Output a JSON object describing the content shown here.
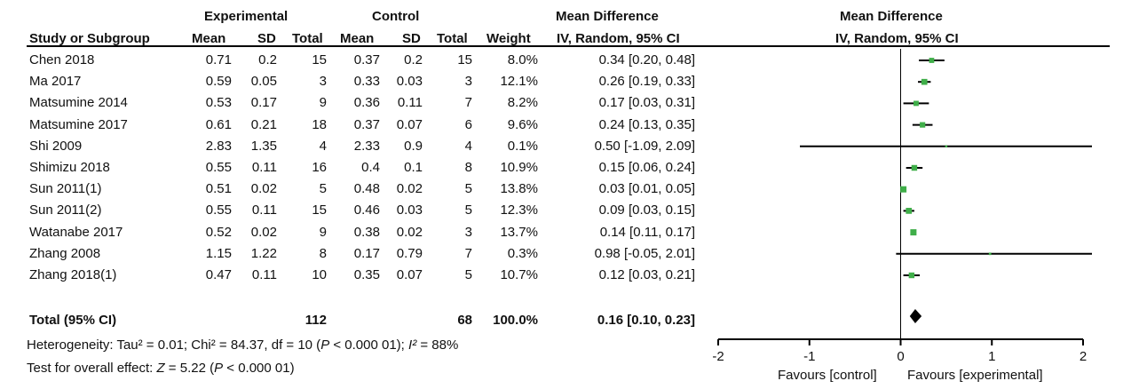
{
  "headers": {
    "experimental": "Experimental",
    "control": "Control",
    "mean_difference_left": "Mean Difference",
    "mean_difference_right": "Mean Difference",
    "study": "Study or Subgroup",
    "mean": "Mean",
    "sd": "SD",
    "total": "Total",
    "mean_c": "Mean",
    "sd_c": "SD",
    "total_c": "Total",
    "weight": "Weight",
    "ci_left": "IV, Random, 95% CI",
    "ci_right": "IV, Random, 95% CI"
  },
  "rows": [
    {
      "study": "Chen  2018",
      "e_mean": "0.71",
      "e_sd": "0.2",
      "e_total": "15",
      "c_mean": "0.37",
      "c_sd": "0.2",
      "c_total": "15",
      "weight": "8.0%",
      "ci": "0.34 [0.20, 0.48]"
    },
    {
      "study": "Ma  2017",
      "e_mean": "0.59",
      "e_sd": "0.05",
      "e_total": "3",
      "c_mean": "0.33",
      "c_sd": "0.03",
      "c_total": "3",
      "weight": "12.1%",
      "ci": "0.26 [0.19, 0.33]"
    },
    {
      "study": "Matsumine  2014",
      "e_mean": "0.53",
      "e_sd": "0.17",
      "e_total": "9",
      "c_mean": "0.36",
      "c_sd": "0.11",
      "c_total": "7",
      "weight": "8.2%",
      "ci": "0.17 [0.03, 0.31]"
    },
    {
      "study": "Matsumine  2017",
      "e_mean": "0.61",
      "e_sd": "0.21",
      "e_total": "18",
      "c_mean": "0.37",
      "c_sd": "0.07",
      "c_total": "6",
      "weight": "9.6%",
      "ci": "0.24 [0.13, 0.35]"
    },
    {
      "study": "Shi  2009",
      "e_mean": "2.83",
      "e_sd": "1.35",
      "e_total": "4",
      "c_mean": "2.33",
      "c_sd": "0.9",
      "c_total": "4",
      "weight": "0.1%",
      "ci": "0.50 [-1.09, 2.09]"
    },
    {
      "study": "Shimizu  2018",
      "e_mean": "0.55",
      "e_sd": "0.11",
      "e_total": "16",
      "c_mean": "0.4",
      "c_sd": "0.1",
      "c_total": "8",
      "weight": "10.9%",
      "ci": "0.15 [0.06, 0.24]"
    },
    {
      "study": "Sun  2011(1)",
      "e_mean": "0.51",
      "e_sd": "0.02",
      "e_total": "5",
      "c_mean": "0.48",
      "c_sd": "0.02",
      "c_total": "5",
      "weight": "13.8%",
      "ci": "0.03 [0.01, 0.05]"
    },
    {
      "study": "Sun  2011(2)",
      "e_mean": "0.55",
      "e_sd": "0.11",
      "e_total": "15",
      "c_mean": "0.46",
      "c_sd": "0.03",
      "c_total": "5",
      "weight": "12.3%",
      "ci": "0.09 [0.03, 0.15]"
    },
    {
      "study": "Watanabe  2017",
      "e_mean": "0.52",
      "e_sd": "0.02",
      "e_total": "9",
      "c_mean": "0.38",
      "c_sd": "0.02",
      "c_total": "3",
      "weight": "13.7%",
      "ci": "0.14 [0.11, 0.17]"
    },
    {
      "study": "Zhang  2008",
      "e_mean": "1.15",
      "e_sd": "1.22",
      "e_total": "8",
      "c_mean": "0.17",
      "c_sd": "0.79",
      "c_total": "7",
      "weight": "0.3%",
      "ci": "0.98 [-0.05, 2.01]"
    },
    {
      "study": "Zhang  2018(1)",
      "e_mean": "0.47",
      "e_sd": "0.11",
      "e_total": "10",
      "c_mean": "0.35",
      "c_sd": "0.07",
      "c_total": "5",
      "weight": "10.7%",
      "ci": "0.12 [0.03, 0.21]"
    }
  ],
  "total": {
    "label": "Total (95% CI)",
    "e_total": "112",
    "c_total": "68",
    "weight": "100.0%",
    "ci": "0.16 [0.10, 0.23]"
  },
  "heterogeneity": {
    "prefix": "Heterogeneity: Tau² = 0.01; Chi² = 84.37, df = 10 (",
    "p_var": "P",
    "p_rest": " < 0.000 01); ",
    "i2_var": "I²",
    "i2_rest": " = 88%"
  },
  "overall_effect": {
    "prefix": "Test for overall effect: ",
    "z_var": "Z",
    "z_rest": " = 5.22 (",
    "p_var": "P",
    "p_rest": " < 0.000 01)"
  },
  "chart_data": {
    "type": "forest",
    "xlim": [
      -2,
      2
    ],
    "ticks": [
      -2,
      -1,
      0,
      1,
      2
    ],
    "tick_labels": [
      "-2",
      "-1",
      "0",
      "1",
      "2"
    ],
    "xlabel_left": "Favours [control]",
    "xlabel_right": "Favours [experimental]",
    "marker_color": "#3fae49",
    "points": [
      {
        "study": "Chen  2018",
        "md": 0.34,
        "lo": 0.2,
        "hi": 0.48,
        "weight": 8.0
      },
      {
        "study": "Ma  2017",
        "md": 0.26,
        "lo": 0.19,
        "hi": 0.33,
        "weight": 12.1
      },
      {
        "study": "Matsumine  2014",
        "md": 0.17,
        "lo": 0.03,
        "hi": 0.31,
        "weight": 8.2
      },
      {
        "study": "Matsumine  2017",
        "md": 0.24,
        "lo": 0.13,
        "hi": 0.35,
        "weight": 9.6
      },
      {
        "study": "Shi  2009",
        "md": 0.5,
        "lo": -1.09,
        "hi": 2.09,
        "weight": 0.1
      },
      {
        "study": "Shimizu  2018",
        "md": 0.15,
        "lo": 0.06,
        "hi": 0.24,
        "weight": 10.9
      },
      {
        "study": "Sun  2011(1)",
        "md": 0.03,
        "lo": 0.01,
        "hi": 0.05,
        "weight": 13.8
      },
      {
        "study": "Sun  2011(2)",
        "md": 0.09,
        "lo": 0.03,
        "hi": 0.15,
        "weight": 12.3
      },
      {
        "study": "Watanabe  2017",
        "md": 0.14,
        "lo": 0.11,
        "hi": 0.17,
        "weight": 13.7
      },
      {
        "study": "Zhang  2008",
        "md": 0.98,
        "lo": -0.05,
        "hi": 2.01,
        "weight": 0.3
      },
      {
        "study": "Zhang  2018(1)",
        "md": 0.12,
        "lo": 0.03,
        "hi": 0.21,
        "weight": 10.7
      }
    ],
    "pooled": {
      "md": 0.16,
      "lo": 0.1,
      "hi": 0.23
    }
  }
}
